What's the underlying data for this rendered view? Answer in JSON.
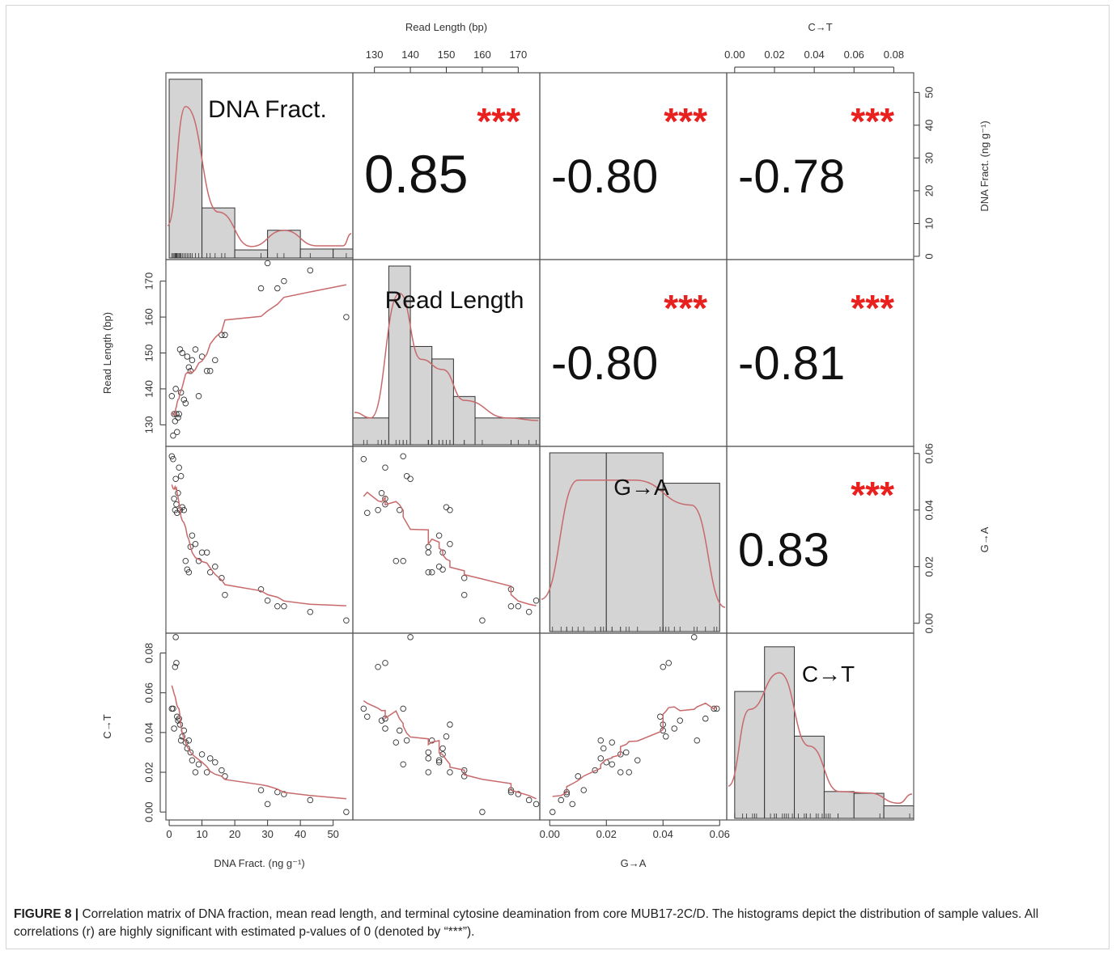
{
  "chart_data": {
    "type": "scatter",
    "variables": [
      {
        "key": "dna",
        "diag_label": "DNA Fract.",
        "axis_label": "DNA Fract. (ng g⁻¹)",
        "ticks": [
          0,
          10,
          20,
          30,
          40,
          50
        ],
        "range": [
          -1,
          56
        ]
      },
      {
        "key": "rl",
        "diag_label": "Read Length",
        "axis_label": "Read Length (bp)",
        "ticks": [
          130,
          140,
          150,
          160,
          170
        ],
        "range": [
          124,
          176
        ]
      },
      {
        "key": "ga",
        "diag_label": "G→A",
        "axis_label": "G→A",
        "ticks": [
          "0.00",
          "0.02",
          "0.04",
          "0.06"
        ],
        "range": [
          -0.0035,
          0.0625
        ]
      },
      {
        "key": "ct",
        "diag_label": "C→T",
        "axis_label": "C→T",
        "ticks": [
          "0.00",
          "0.02",
          "0.04",
          "0.06",
          "0.08"
        ],
        "range": [
          -0.004,
          0.09
        ]
      }
    ],
    "correlations": [
      {
        "row": 0,
        "col": 1,
        "r": "0.85",
        "stars": "***"
      },
      {
        "row": 0,
        "col": 2,
        "r": "-0.80",
        "stars": "***"
      },
      {
        "row": 0,
        "col": 3,
        "r": "-0.78",
        "stars": "***"
      },
      {
        "row": 1,
        "col": 2,
        "r": "-0.80",
        "stars": "***"
      },
      {
        "row": 1,
        "col": 3,
        "r": "-0.81",
        "stars": "***"
      },
      {
        "row": 2,
        "col": 3,
        "r": "0.83",
        "stars": "***"
      }
    ],
    "histograms": [
      {
        "var": "dna",
        "edges": [
          0,
          10,
          20,
          30,
          40,
          50,
          56
        ],
        "heights": [
          1.0,
          0.28,
          0.045,
          0.155,
          0.05,
          0.05
        ]
      },
      {
        "var": "rl",
        "edges": [
          124,
          134,
          140,
          146,
          152,
          158,
          176
        ],
        "heights": [
          0.15,
          1.0,
          0.55,
          0.48,
          0.27,
          0.15
        ]
      },
      {
        "var": "ga",
        "edges": [
          0.0,
          0.02,
          0.04,
          0.06
        ],
        "heights": [
          1.0,
          1.0,
          0.83
        ]
      },
      {
        "var": "ct",
        "edges": [
          0.0,
          0.015,
          0.03,
          0.045,
          0.06,
          0.075,
          0.09
        ],
        "heights": [
          0.71,
          0.96,
          0.46,
          0.15,
          0.14,
          0.07
        ]
      }
    ],
    "points": {
      "dna": [
        0.8,
        1.2,
        1.5,
        1.8,
        2.0,
        2.2,
        2.4,
        2.7,
        3.0,
        3.3,
        3.6,
        4.0,
        4.5,
        5.0,
        5.5,
        6.0,
        6.5,
        7.0,
        8.0,
        9.0,
        10.0,
        11.5,
        12.5,
        14.0,
        16.0,
        17.0,
        28.0,
        30.0,
        33.0,
        35.0,
        43.0,
        54.0
      ],
      "rl": [
        138.0,
        127.0,
        133.0,
        131.0,
        140.0,
        133.0,
        128.0,
        132.0,
        133.0,
        151.0,
        139.0,
        150.0,
        137.0,
        136.0,
        149.0,
        146.0,
        145.0,
        148.0,
        151.0,
        138.0,
        149.0,
        145.0,
        145.0,
        148.0,
        155.0,
        155.0,
        168.0,
        175.0,
        168.0,
        170.0,
        173.0,
        160.0
      ],
      "ga": [
        0.059,
        0.058,
        0.044,
        0.04,
        0.051,
        0.042,
        0.039,
        0.046,
        0.055,
        0.04,
        0.052,
        0.041,
        0.04,
        0.022,
        0.019,
        0.018,
        0.027,
        0.031,
        0.028,
        0.022,
        0.025,
        0.025,
        0.018,
        0.02,
        0.016,
        0.01,
        0.012,
        0.008,
        0.006,
        0.006,
        0.004,
        0.001
      ],
      "ct": [
        0.052,
        0.052,
        0.042,
        0.073,
        0.088,
        0.075,
        0.048,
        0.046,
        0.047,
        0.044,
        0.036,
        0.038,
        0.041,
        0.035,
        0.032,
        0.036,
        0.03,
        0.026,
        0.02,
        0.024,
        0.029,
        0.02,
        0.027,
        0.025,
        0.021,
        0.018,
        0.011,
        0.004,
        0.01,
        0.009,
        0.006,
        0.0
      ]
    },
    "smooth_color": "#c8696b",
    "star_color": "#e8211e",
    "hist_fill": "#d4d4d4"
  },
  "caption": {
    "label": "FIGURE 8 |",
    "text": " Correlation matrix of DNA fraction, mean read length, and terminal cytosine deamination from core MUB17-2C/D. The histograms depict the distribution of sample values. All correlations (r) are highly significant with estimated p-values of 0 (denoted by “***”)."
  }
}
